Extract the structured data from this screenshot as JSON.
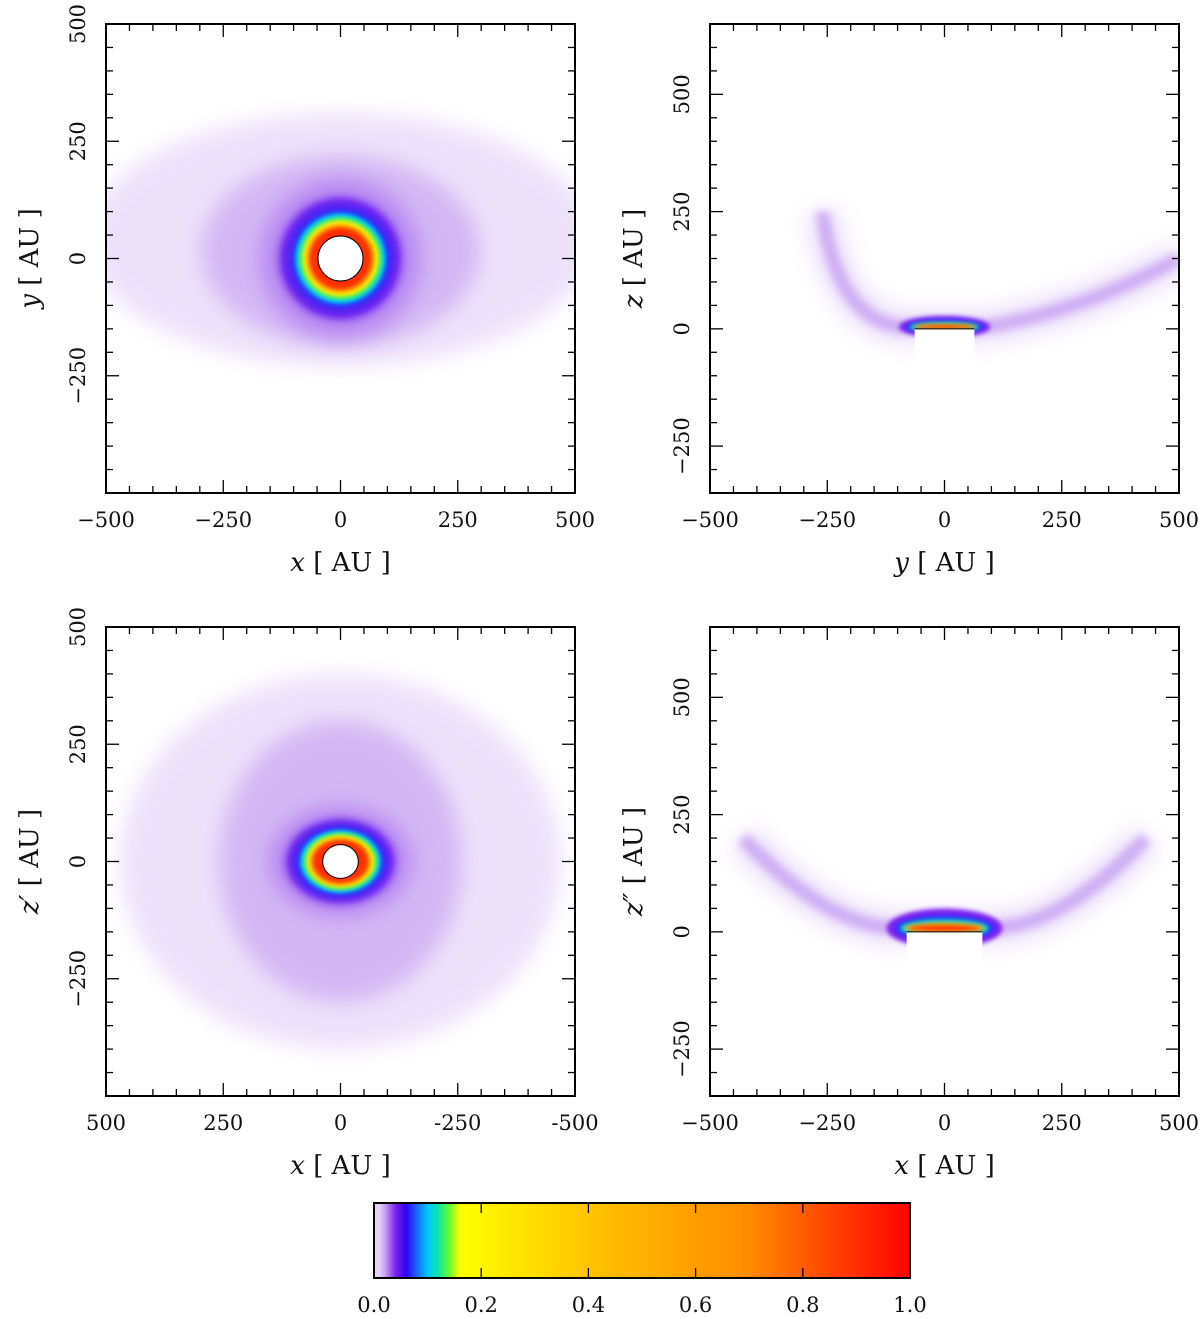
{
  "chart_data": [
    {
      "type": "heatmap",
      "panel": "top-left",
      "xlabel": {
        "var": "x",
        "unit": " [ AU ]"
      },
      "ylabel": {
        "var": "y",
        "unit": " [ AU ]"
      },
      "xlim": [
        -500,
        500
      ],
      "ylim": [
        -500,
        500
      ],
      "x_ticks": [
        {
          "value": -500,
          "label": "−500"
        },
        {
          "value": -250,
          "label": "−250"
        },
        {
          "value": 0,
          "label": "0"
        },
        {
          "value": 250,
          "label": "250"
        },
        {
          "value": 500,
          "label": "500"
        }
      ],
      "y_ticks": [
        {
          "value": -250,
          "label": "−250"
        },
        {
          "value": 0,
          "label": "0"
        },
        {
          "value": 250,
          "label": "250"
        },
        {
          "value": 500,
          "label": "500"
        }
      ],
      "emission": {
        "shape": "ring",
        "center": [
          0,
          0
        ],
        "hole_radius": [
          48,
          48
        ],
        "peak_radius": [
          65,
          65
        ],
        "halo_extent": [
          540,
          270
        ],
        "halo_center": [
          0,
          40
        ]
      }
    },
    {
      "type": "heatmap",
      "panel": "top-right",
      "xlabel": {
        "var": "y",
        "unit": " [ AU ]"
      },
      "ylabel": {
        "var": "z",
        "unit": " [ AU ]"
      },
      "xlim": [
        -500,
        500
      ],
      "ylim": [
        -350,
        650
      ],
      "x_ticks": [
        {
          "value": -500,
          "label": "−500"
        },
        {
          "value": -250,
          "label": "−250"
        },
        {
          "value": 0,
          "label": "0"
        },
        {
          "value": 250,
          "label": "250"
        },
        {
          "value": 500,
          "label": "500"
        }
      ],
      "y_ticks": [
        {
          "value": -250,
          "label": "−250"
        },
        {
          "value": 0,
          "label": "0"
        },
        {
          "value": 250,
          "label": "250"
        },
        {
          "value": 500,
          "label": "500"
        }
      ],
      "emission": {
        "shape": "edge-on",
        "center": [
          0,
          0
        ],
        "half_width": 75
      }
    },
    {
      "type": "heatmap",
      "panel": "bottom-left",
      "xlabel": {
        "var": "x",
        "unit": " [ AU ]"
      },
      "ylabel": {
        "var": "z′",
        "unit": " [ AU ]"
      },
      "xlim": [
        500,
        -500
      ],
      "ylim": [
        -500,
        500
      ],
      "x_ticks": [
        {
          "value": 500,
          "label": "500"
        },
        {
          "value": 250,
          "label": "250"
        },
        {
          "value": 0,
          "label": "0"
        },
        {
          "value": -250,
          "label": "-250"
        },
        {
          "value": -500,
          "label": "-500"
        }
      ],
      "y_ticks": [
        {
          "value": -250,
          "label": "−250"
        },
        {
          "value": 0,
          "label": "0"
        },
        {
          "value": 250,
          "label": "250"
        },
        {
          "value": 500,
          "label": "500"
        }
      ],
      "emission": {
        "shape": "ring",
        "center": [
          0,
          0
        ],
        "hole_radius": [
          38,
          36
        ],
        "peak_radius": [
          58,
          45
        ],
        "halo_extent": [
          470,
          400
        ],
        "halo_center": [
          0,
          0
        ]
      }
    },
    {
      "type": "heatmap",
      "panel": "bottom-right",
      "xlabel": {
        "var": "x",
        "unit": " [ AU ]"
      },
      "ylabel": {
        "var": "z″",
        "unit": " [ AU ]"
      },
      "xlim": [
        -500,
        500
      ],
      "ylim": [
        -350,
        650
      ],
      "x_ticks": [
        {
          "value": -500,
          "label": "−500"
        },
        {
          "value": -250,
          "label": "−250"
        },
        {
          "value": 0,
          "label": "0"
        },
        {
          "value": 250,
          "label": "250"
        },
        {
          "value": 500,
          "label": "500"
        }
      ],
      "y_ticks": [
        {
          "value": -250,
          "label": "−250"
        },
        {
          "value": 0,
          "label": "0"
        },
        {
          "value": 250,
          "label": "250"
        },
        {
          "value": 500,
          "label": "500"
        }
      ],
      "emission": {
        "shape": "edge-on",
        "center": [
          0,
          0
        ],
        "half_width": 95
      }
    }
  ],
  "colorbar": {
    "range": [
      0.0,
      1.0
    ],
    "ticks": [
      {
        "value": 0.0,
        "label": "0.0"
      },
      {
        "value": 0.2,
        "label": "0.2"
      },
      {
        "value": 0.4,
        "label": "0.4"
      },
      {
        "value": 0.6,
        "label": "0.6"
      },
      {
        "value": 0.8,
        "label": "0.8"
      },
      {
        "value": 1.0,
        "label": "1.0"
      }
    ],
    "colors": [
      {
        "value": 0.0,
        "color": "#ffffff"
      },
      {
        "value": 0.02,
        "color": "#c9a6f2"
      },
      {
        "value": 0.04,
        "color": "#7e22f0"
      },
      {
        "value": 0.06,
        "color": "#2c05f0"
      },
      {
        "value": 0.08,
        "color": "#1a66ff"
      },
      {
        "value": 0.1,
        "color": "#00c8ff"
      },
      {
        "value": 0.12,
        "color": "#10e6a0"
      },
      {
        "value": 0.14,
        "color": "#60ff30"
      },
      {
        "value": 0.16,
        "color": "#ffff00"
      },
      {
        "value": 0.4,
        "color": "#ffc400"
      },
      {
        "value": 0.7,
        "color": "#ff8a00"
      },
      {
        "value": 1.0,
        "color": "#ff0000"
      }
    ]
  }
}
